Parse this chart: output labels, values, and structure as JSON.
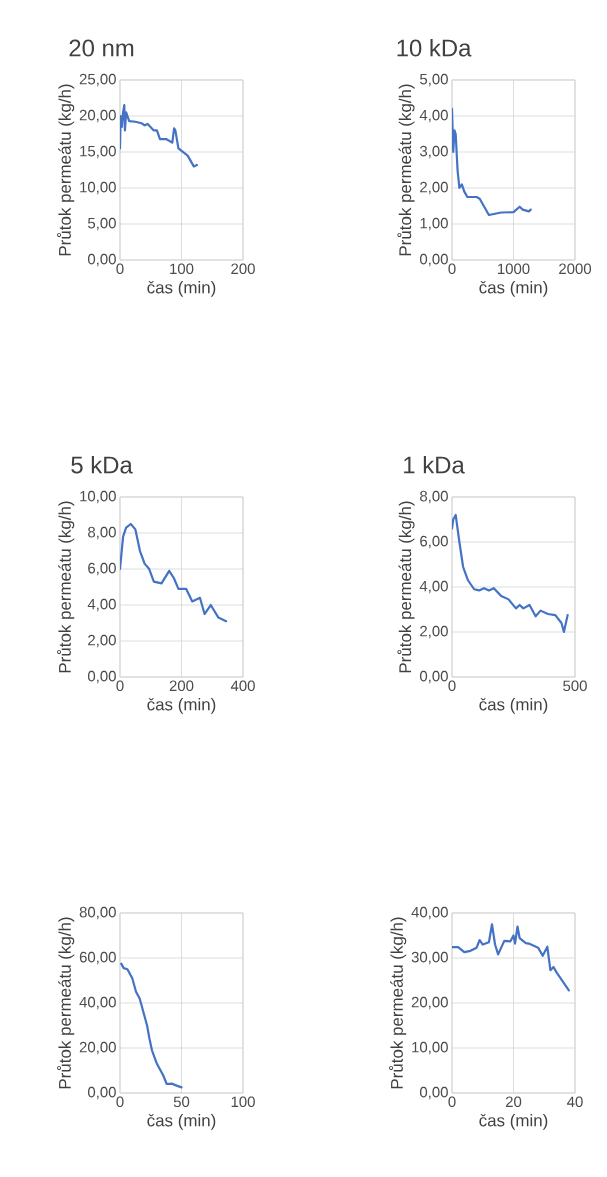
{
  "chart_data": [
    {
      "type": "line",
      "title": "20 nm",
      "xlabel": "čas (min)",
      "ylabel": "Průtok permeátu (kg/h)",
      "color": "#4472c4",
      "grid": true,
      "x": [
        0,
        1,
        3,
        5,
        7,
        8,
        10,
        15,
        25,
        35,
        40,
        45,
        55,
        60,
        65,
        75,
        85,
        88,
        90,
        95,
        110,
        120,
        125
      ],
      "values": [
        15.5,
        20,
        18.5,
        20.5,
        21.5,
        18,
        20.5,
        19.3,
        19.2,
        19,
        18.7,
        18.9,
        18,
        18,
        16.8,
        16.8,
        16.3,
        18.3,
        18,
        15.5,
        14.5,
        13,
        13.2
      ],
      "xlim": [
        0,
        200
      ],
      "xticks": [
        0,
        100,
        200
      ],
      "ylim": [
        0,
        25
      ],
      "yticks": [
        {
          "value": 0,
          "label": "0,00"
        },
        {
          "value": 5,
          "label": "5,00"
        },
        {
          "value": 10,
          "label": "10,00"
        },
        {
          "value": 15,
          "label": "15,00"
        },
        {
          "value": 20,
          "label": "20,00"
        },
        {
          "value": 25,
          "label": "25,00"
        }
      ]
    },
    {
      "type": "line",
      "title": "10 kDa",
      "xlabel": "čas (min)",
      "ylabel": "Průtok permeátu (kg/h)",
      "color": "#4472c4",
      "grid": true,
      "x": [
        0,
        20,
        40,
        60,
        90,
        120,
        160,
        200,
        250,
        400,
        450,
        600,
        800,
        1000,
        1100,
        1150,
        1250,
        1280
      ],
      "values": [
        4.2,
        3,
        3.6,
        3.5,
        2.5,
        2.0,
        2.1,
        1.9,
        1.75,
        1.75,
        1.7,
        1.25,
        1.32,
        1.33,
        1.48,
        1.4,
        1.35,
        1.4
      ],
      "xlim": [
        0,
        2000
      ],
      "xticks": [
        0,
        1000,
        2000
      ],
      "ylim": [
        0,
        5
      ],
      "yticks": [
        {
          "value": 0,
          "label": "0,00"
        },
        {
          "value": 1,
          "label": "1,00"
        },
        {
          "value": 2,
          "label": "2,00"
        },
        {
          "value": 3,
          "label": "3,00"
        },
        {
          "value": 4,
          "label": "4,00"
        },
        {
          "value": 5,
          "label": "5,00"
        }
      ]
    },
    {
      "type": "line",
      "title": "5 kDa",
      "xlabel": "čas (min)",
      "ylabel": "Průtok permeátu (kg/h)",
      "color": "#4472c4",
      "grid": true,
      "x": [
        0,
        10,
        20,
        35,
        50,
        65,
        80,
        95,
        110,
        135,
        160,
        175,
        190,
        215,
        235,
        260,
        275,
        295,
        320,
        345
      ],
      "values": [
        6,
        7.8,
        8.3,
        8.5,
        8.2,
        7,
        6.3,
        6,
        5.3,
        5.2,
        5.9,
        5.5,
        4.9,
        4.9,
        4.2,
        4.4,
        3.5,
        4,
        3.3,
        3.1
      ],
      "xlim": [
        0,
        400
      ],
      "xticks": [
        0,
        200,
        400
      ],
      "ylim": [
        0,
        10
      ],
      "yticks": [
        {
          "value": 0,
          "label": "0,00"
        },
        {
          "value": 2,
          "label": "2,00"
        },
        {
          "value": 4,
          "label": "4,00"
        },
        {
          "value": 6,
          "label": "6,00"
        },
        {
          "value": 8,
          "label": "8,00"
        },
        {
          "value": 10,
          "label": "10,00"
        }
      ]
    },
    {
      "type": "line",
      "title": "1 kDa",
      "xlabel": "čas (min)",
      "ylabel": "Průtok permeátu (kg/h)",
      "color": "#4472c4",
      "grid": true,
      "x": [
        0,
        5,
        15,
        30,
        45,
        65,
        90,
        110,
        130,
        150,
        170,
        200,
        230,
        260,
        275,
        290,
        315,
        340,
        360,
        390,
        420,
        445,
        455,
        470
      ],
      "values": [
        6.6,
        7,
        7.2,
        6,
        4.9,
        4.3,
        3.9,
        3.85,
        3.95,
        3.85,
        3.95,
        3.6,
        3.45,
        3.05,
        3.2,
        3.05,
        3.2,
        2.7,
        2.95,
        2.8,
        2.75,
        2.4,
        2.0,
        2.75
      ],
      "xlim": [
        0,
        500
      ],
      "xticks": [
        0,
        500
      ],
      "ylim": [
        0,
        8
      ],
      "yticks": [
        {
          "value": 0,
          "label": "0,00"
        },
        {
          "value": 2,
          "label": "2,00"
        },
        {
          "value": 4,
          "label": "4,00"
        },
        {
          "value": 6,
          "label": "6,00"
        },
        {
          "value": 8,
          "label": "8,00"
        }
      ]
    },
    {
      "type": "line",
      "xlabel": "čas (min)",
      "ylabel": "Průtok permeátu (kg/h)",
      "color": "#4472c4",
      "grid": true,
      "x": [
        1,
        3,
        6,
        10,
        13,
        16,
        20,
        22,
        24,
        26,
        30,
        35,
        38,
        42,
        45,
        50
      ],
      "values": [
        57.5,
        55.5,
        55,
        51,
        45,
        42,
        34,
        30,
        24,
        19,
        13,
        8,
        4,
        4.2,
        3.5,
        2.5
      ],
      "xlim": [
        0,
        100
      ],
      "xticks": [
        0,
        50,
        100
      ],
      "ylim": [
        0,
        80
      ],
      "yticks": [
        {
          "value": 0,
          "label": "0,00"
        },
        {
          "value": 20,
          "label": "20,00"
        },
        {
          "value": 40,
          "label": "40,00"
        },
        {
          "value": 60,
          "label": "60,00"
        },
        {
          "value": 80,
          "label": "80,00"
        }
      ]
    },
    {
      "type": "line",
      "xlabel": "čas (min)",
      "ylabel": "Průtok permeátu (kg/h)",
      "color": "#4472c4",
      "grid": true,
      "x": [
        0,
        2,
        4,
        6,
        8,
        9,
        10,
        12,
        13,
        14,
        15,
        17,
        19,
        20,
        20.5,
        21.3,
        22,
        24,
        25,
        28,
        29.5,
        31,
        32,
        33,
        34,
        38
      ],
      "values": [
        32.4,
        32.4,
        31.3,
        31.6,
        32.3,
        34,
        33,
        33.5,
        37.5,
        33,
        30.8,
        33.8,
        33.7,
        35,
        33.2,
        37,
        34.4,
        33.3,
        33.2,
        32.3,
        30.5,
        32.5,
        27.3,
        28,
        26.8,
        22.8
      ],
      "xlim": [
        0,
        40
      ],
      "xticks": [
        0,
        20,
        40
      ],
      "ylim": [
        0,
        40
      ],
      "yticks": [
        {
          "value": 0,
          "label": "0,00"
        },
        {
          "value": 10,
          "label": "10,00"
        },
        {
          "value": 20,
          "label": "20,00"
        },
        {
          "value": 30,
          "label": "30,00"
        },
        {
          "value": 40,
          "label": "40,00"
        }
      ]
    }
  ]
}
